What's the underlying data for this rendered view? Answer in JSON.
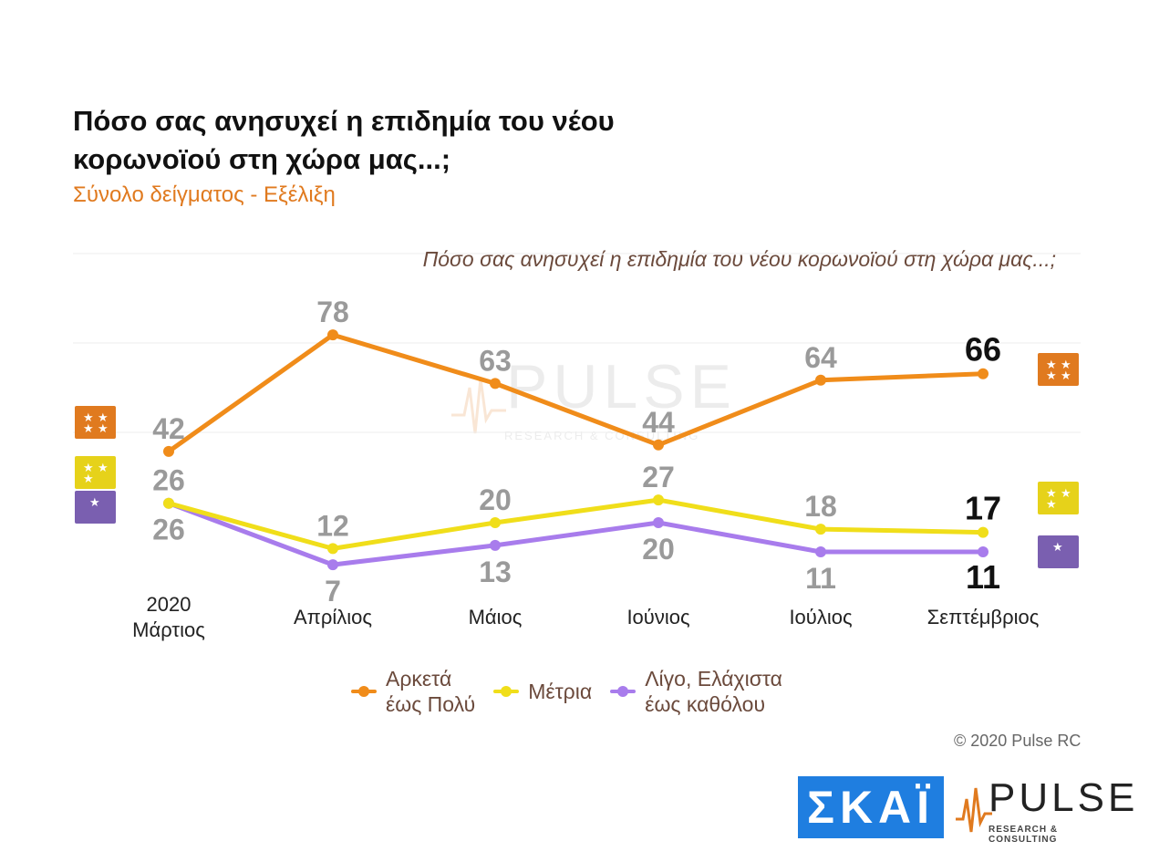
{
  "header": {
    "title": "Πόσο σας ανησυχεί η επιδημία του νέου κορωνοϊού στη χώρα μας...;",
    "subtitle": "Σύνολο δείγματος - Εξέλιξη"
  },
  "chart_data": {
    "type": "line",
    "title": "Πόσο σας ανησυχεί η επιδημία του νέου κορωνοϊού στη χώρα μας...;",
    "categories": [
      "2020\nΜάρτιος",
      "Απρίλιος",
      "Μάιος",
      "Ιούνιος",
      "Ιούλιος",
      "Σεπτέμβριος"
    ],
    "series": [
      {
        "name": "Αρκετά\nέως Πολύ",
        "color": "#f08c1a",
        "values": [
          42,
          78,
          63,
          44,
          64,
          66
        ]
      },
      {
        "name": "Μέτρια",
        "color": "#f0de1a",
        "values": [
          26,
          12,
          20,
          27,
          18,
          17
        ]
      },
      {
        "name": "Λίγο, Ελάχιστα\nέως καθόλου",
        "color": "#a87cec",
        "values": [
          26,
          7,
          13,
          20,
          11,
          11
        ]
      }
    ],
    "xlabel": "",
    "ylabel": "",
    "ylim": [
      0,
      100
    ],
    "grid": true,
    "legend": "bottom"
  },
  "watermark": {
    "word": "PULSE",
    "sub": "RESEARCH & CONSULTING"
  },
  "footer": {
    "copyright": "© 2020 Pulse RC",
    "skai_logo": "ΣΚΑΪ",
    "pulse_logo": "PULSE",
    "pulse_sub": "RESEARCH & CONSULTING"
  },
  "colors": {
    "accent": "#e07a1f",
    "icon_orange": "#e07a1f",
    "icon_yellow": "#e6d21a",
    "icon_purple": "#7a5fb0"
  }
}
